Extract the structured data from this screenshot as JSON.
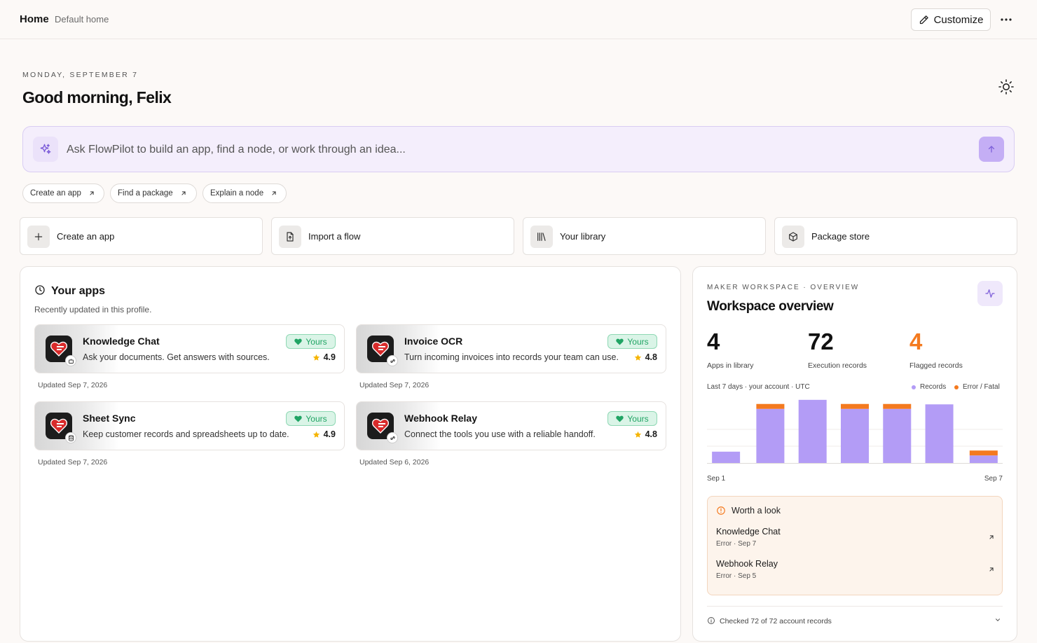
{
  "topbar": {
    "home": "Home",
    "subtitle": "Default home",
    "customize_label": "Customize"
  },
  "greeting": {
    "date": "MONDAY, SEPTEMBER 7",
    "text": "Good morning, Felix"
  },
  "prompt": {
    "placeholder": "Ask FlowPilot to build an app, find a node, or work through an idea..."
  },
  "chips": [
    {
      "label": "Create an app"
    },
    {
      "label": "Find a package"
    },
    {
      "label": "Explain a node"
    }
  ],
  "quick_actions": [
    {
      "label": "Create an app",
      "icon": "plus-icon"
    },
    {
      "label": "Import a flow",
      "icon": "file-upload-icon"
    },
    {
      "label": "Your library",
      "icon": "library-icon"
    },
    {
      "label": "Package store",
      "icon": "package-icon"
    }
  ],
  "apps": {
    "title": "Your apps",
    "subtitle": "Recently updated in this profile.",
    "items": [
      {
        "name": "Knowledge Chat",
        "desc": "Ask your documents. Get answers with sources.",
        "badge": "Yours",
        "rating": "4.9",
        "updated": "Updated Sep 7, 2026"
      },
      {
        "name": "Invoice OCR",
        "desc": "Turn incoming invoices into records your team can use.",
        "badge": "Yours",
        "rating": "4.8",
        "updated": "Updated Sep 7, 2026"
      },
      {
        "name": "Sheet Sync",
        "desc": "Keep customer records and spreadsheets up to date.",
        "badge": "Yours",
        "rating": "4.9",
        "updated": "Updated Sep 7, 2026"
      },
      {
        "name": "Webhook Relay",
        "desc": "Connect the tools you use with a reliable handoff.",
        "badge": "Yours",
        "rating": "4.8",
        "updated": "Updated Sep 6, 2026"
      }
    ]
  },
  "overview": {
    "eyebrow": "MAKER WORKSPACE · OVERVIEW",
    "title": "Workspace overview",
    "stats": [
      {
        "value": "4",
        "label": "Apps in library"
      },
      {
        "value": "72",
        "label": "Execution records"
      },
      {
        "value": "4",
        "label": "Flagged records"
      }
    ],
    "range": "Last 7 days · your account · UTC",
    "legend_records": "Records",
    "legend_errors": "Error / Fatal",
    "x_start": "Sep 1",
    "x_end": "Sep 7",
    "worth": {
      "title": "Worth a look",
      "items": [
        {
          "name": "Knowledge Chat",
          "status": "Error · Sep 7"
        },
        {
          "name": "Webhook Relay",
          "status": "Error · Sep 5"
        }
      ]
    },
    "footer": "Checked 72 of 72 account records"
  },
  "colors": {
    "records": "#b39cf6",
    "errors": "#f47a1f",
    "accent": "#8b6ae6",
    "yours": "#20a464"
  },
  "chart_data": {
    "type": "bar",
    "categories": [
      "Sep 1",
      "Sep 2",
      "Sep 3",
      "Sep 4",
      "Sep 5",
      "Sep 6",
      "Sep 7"
    ],
    "series": [
      {
        "name": "Records",
        "values": [
          3,
          12,
          14,
          12,
          12,
          13,
          2
        ]
      },
      {
        "name": "Error / Fatal",
        "values": [
          0,
          1,
          0,
          1,
          1,
          0,
          1
        ]
      }
    ],
    "ylim": [
      0,
      14
    ],
    "stacked": true,
    "grid": true,
    "legend_position": "top-right"
  }
}
